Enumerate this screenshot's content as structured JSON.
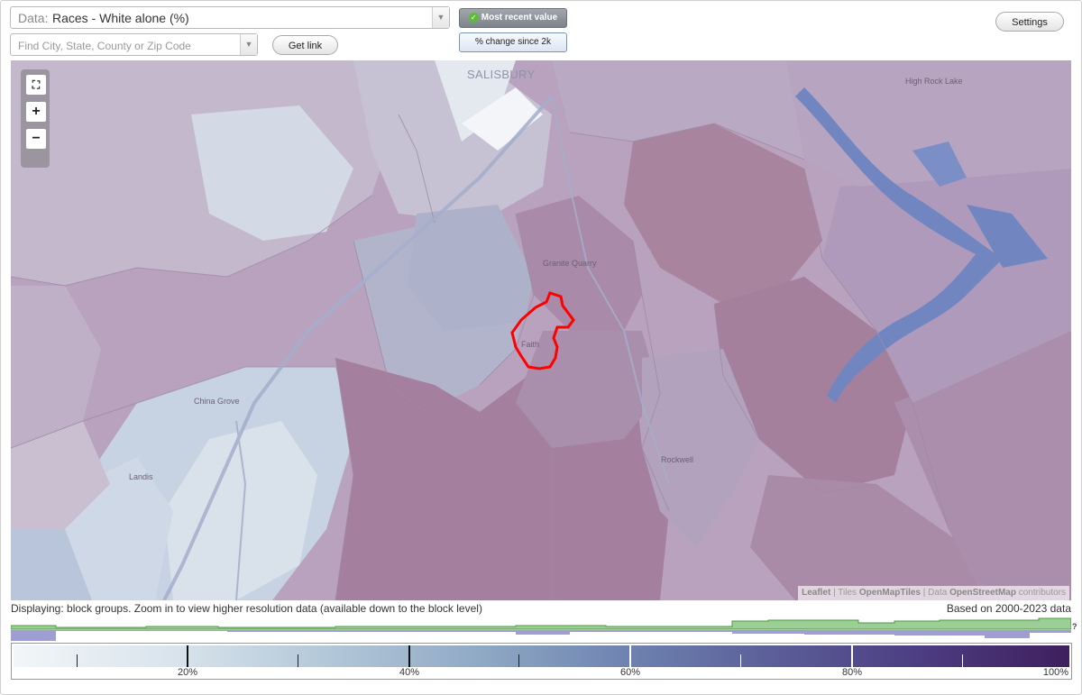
{
  "controls": {
    "data_prefix": "Data:",
    "data_value": "Races - White alone (%)",
    "search_placeholder": "Find City, State, County or Zip Code",
    "get_link": "Get link",
    "toggle_recent": "Most recent value",
    "toggle_change": "% change since 2k",
    "settings": "Settings"
  },
  "map": {
    "labels": {
      "salisbury": "SALISBURY",
      "high_rock_lake": "High Rock Lake",
      "granite_quarry": "Granite Quarry",
      "faith": "Faith",
      "china_grove": "China Grove",
      "landis": "Landis",
      "rockwell": "Rockwell"
    },
    "attribution": {
      "leaflet": "Leaflet",
      "sep1": " | Tiles ",
      "tiles": "OpenMapTiles",
      "sep2": " | Data ",
      "osm": "OpenStreetMap",
      "contrib": " contributors"
    },
    "highlight_color": "#ff0000"
  },
  "footer": {
    "displaying": "Displaying: block groups. Zoom in to view higher resolution data (available down to the block level)",
    "based_on": "Based on 2000-2023 data",
    "help_mark": "?"
  },
  "legend": {
    "labels": [
      "20%",
      "40%",
      "60%",
      "80%",
      "100%"
    ],
    "colors": {
      "low": "#f2f6f8",
      "mid": "#6e83b0",
      "high": "#3f1f5e"
    }
  }
}
